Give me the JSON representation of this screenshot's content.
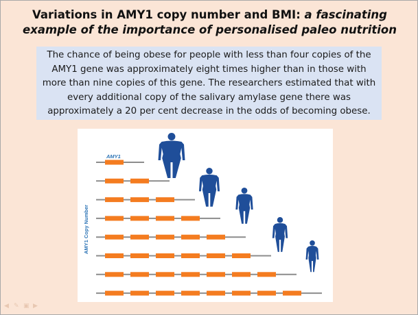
{
  "title": {
    "line1": "Variations in AMY1 copy number and BMI:",
    "line1_em": "a fascinating",
    "line2_em": "example of the importance of personalised paleo nutrition"
  },
  "info": {
    "lines": [
      "The chance of being obese for people with less than four copies of the",
      "AMY1 gene was approximately eight times higher than in those with",
      "more than nine copies of this gene. The researchers estimated that with",
      "every additional copy of the salivary amylase gene there was",
      "approximately a 20 per cent decrease in the odds of becoming obese."
    ]
  },
  "figure": {
    "gene_label": "AMY1",
    "axis_label": "AMY1 Copy Number",
    "rows_copy_counts": [
      1,
      2,
      3,
      4,
      5,
      6,
      7,
      8
    ],
    "figures_count": 5,
    "colors": {
      "gene": "#f47c20",
      "line": "#8c8c8c",
      "figure": "#1f4e99",
      "label": "#2e75b6",
      "box_bg": "#dae3f3",
      "slide_bg": "#fbe5d6"
    }
  },
  "nav": {
    "icons": [
      "back-arrow-icon",
      "pen-icon",
      "slide-menu-icon",
      "forward-arrow-icon"
    ]
  }
}
